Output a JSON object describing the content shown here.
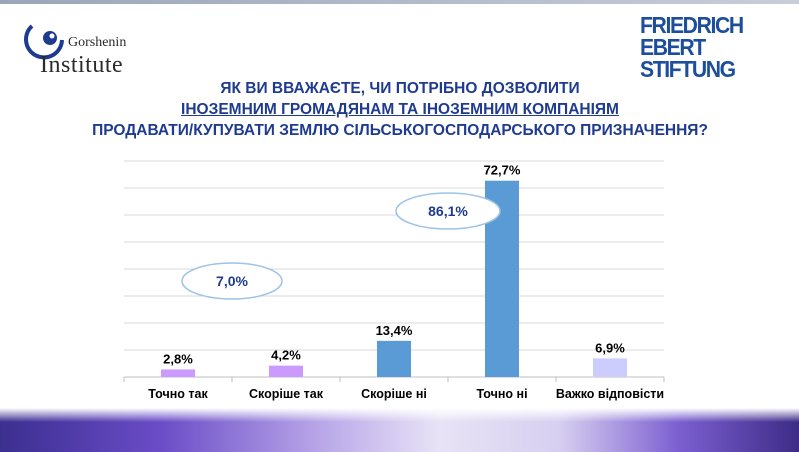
{
  "logo_left": {
    "line1": "Gorshenin",
    "line2": "Institute"
  },
  "logo_right": {
    "line1": "FRIEDRICH",
    "line2": "EBERT",
    "line3": "STIFTUNG"
  },
  "title": {
    "line1": "ЯК ВИ ВВАЖАЄТЕ, ЧИ ПОТРІБНО ДОЗВОЛИТИ",
    "line2": "ІНОЗЕМНИМ ГРОМАДЯНАМ ТА ІНОЗЕМНИМ КОМПАНІЯМ",
    "line3": "ПРОДАВАТИ/КУПУВАТИ ЗЕМЛЮ СІЛЬСЬКОГОСПОДАРСЬКОГО ПРИЗНАЧЕННЯ?"
  },
  "colors": {
    "title": "#1f3b8f",
    "violet": "#cc99ff",
    "blue": "#5b9bd5",
    "lavender": "#ccccff",
    "ellipse": "#9dc3e6"
  },
  "chart_data": {
    "type": "bar",
    "categories": [
      "Точно так",
      "Скоріше так",
      "Скоріше ні",
      "Точно ні",
      "Важко відповісти"
    ],
    "values": [
      2.8,
      4.2,
      13.4,
      72.7,
      6.9
    ],
    "data_labels": [
      "2,8%",
      "4,2%",
      "13,4%",
      "72,7%",
      "6,9%"
    ],
    "bar_colors": [
      "#cc99ff",
      "#cc99ff",
      "#5b9bd5",
      "#5b9bd5",
      "#ccccff"
    ],
    "ylim": [
      0,
      80
    ],
    "grid": true,
    "annotations": [
      {
        "text": "7,0%",
        "value": 7.0,
        "categories": [
          "Точно так",
          "Скоріше так"
        ]
      },
      {
        "text": "86,1%",
        "value": 86.1,
        "categories": [
          "Скоріше ні",
          "Точно ні"
        ]
      }
    ]
  }
}
